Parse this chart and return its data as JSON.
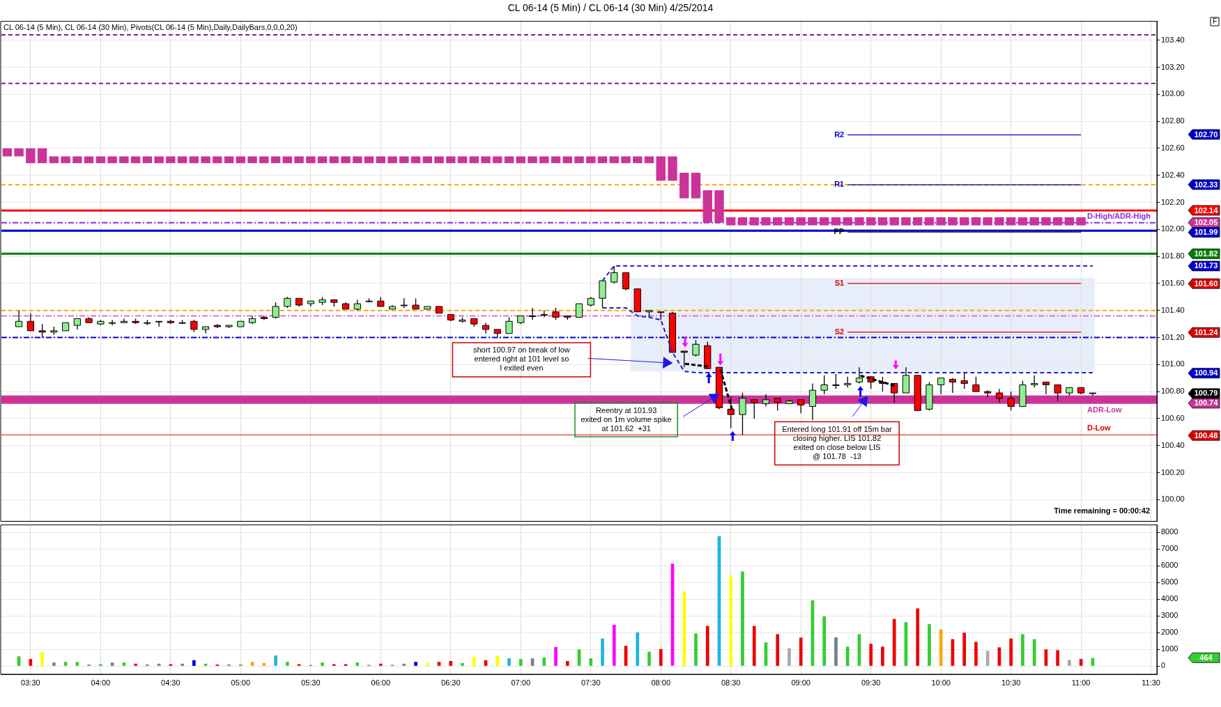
{
  "chart_data": [
    {
      "type": "candlestick",
      "title": "CL 06-14 (5 Min) / CL 06-14 (30 Min)  4/25/2014",
      "categories": [
        null,
        null,
        null,
        null,
        null,
        null,
        null,
        null,
        null,
        null,
        null,
        null,
        null,
        null,
        null,
        null,
        null,
        null,
        null,
        null,
        null,
        null,
        null,
        null,
        null,
        null,
        null,
        null,
        null,
        null,
        null,
        null,
        null,
        null,
        null,
        null,
        null,
        null,
        null,
        null,
        null,
        null,
        null,
        null,
        null,
        null,
        null,
        null,
        null,
        null,
        null,
        null,
        null,
        null,
        null,
        null,
        null,
        null,
        null,
        null,
        null,
        null,
        null,
        null,
        null,
        null,
        null,
        null,
        null,
        null,
        null,
        null,
        null,
        null,
        null,
        null,
        null,
        null,
        null,
        null,
        null,
        null,
        null,
        null,
        null,
        null,
        null,
        null,
        null,
        null,
        null,
        null,
        null,
        null,
        null,
        null,
        null,
        null,
        null
      ],
      "ohlc": [
        null,
        [
          101.28,
          101.4,
          101.28,
          101.32
        ],
        [
          101.32,
          101.38,
          101.25,
          101.25
        ],
        [
          101.25,
          101.3,
          101.2,
          101.24
        ],
        [
          101.24,
          101.28,
          101.22,
          101.25
        ],
        [
          101.25,
          101.31,
          101.25,
          101.31
        ],
        [
          101.29,
          101.34,
          101.26,
          101.34
        ],
        [
          101.34,
          101.35,
          101.31,
          101.31
        ],
        [
          101.3,
          101.33,
          101.29,
          101.32
        ],
        [
          101.31,
          101.33,
          101.29,
          101.31
        ],
        [
          101.31,
          101.34,
          101.31,
          101.32
        ],
        [
          101.32,
          101.34,
          101.3,
          101.31
        ],
        [
          101.31,
          101.33,
          101.29,
          101.31
        ],
        [
          101.32,
          101.32,
          101.28,
          101.32
        ],
        [
          101.32,
          101.33,
          101.3,
          101.31
        ],
        [
          101.31,
          101.33,
          101.3,
          101.31
        ],
        [
          101.32,
          101.33,
          101.24,
          101.26
        ],
        [
          101.26,
          101.28,
          101.23,
          101.28
        ],
        [
          101.29,
          101.3,
          101.27,
          101.28
        ],
        [
          101.28,
          101.29,
          101.27,
          101.29
        ],
        [
          101.28,
          101.32,
          101.28,
          101.32
        ],
        [
          101.31,
          101.36,
          101.3,
          101.34
        ],
        [
          101.35,
          101.36,
          101.33,
          101.34
        ],
        [
          101.35,
          101.46,
          101.34,
          101.43
        ],
        [
          101.43,
          101.5,
          101.42,
          101.49
        ],
        [
          101.49,
          101.49,
          101.43,
          101.44
        ],
        [
          101.45,
          101.47,
          101.43,
          101.47
        ],
        [
          101.46,
          101.5,
          101.44,
          101.48
        ],
        [
          101.48,
          101.48,
          101.43,
          101.46
        ],
        [
          101.45,
          101.46,
          101.41,
          101.41
        ],
        [
          101.41,
          101.48,
          101.4,
          101.45
        ],
        [
          101.47,
          101.49,
          101.46,
          101.47
        ],
        [
          101.47,
          101.5,
          101.43,
          101.43
        ],
        [
          101.41,
          101.44,
          101.41,
          101.43
        ],
        [
          101.44,
          101.49,
          101.42,
          101.44
        ],
        [
          101.44,
          101.49,
          101.41,
          101.41
        ],
        [
          101.41,
          101.43,
          101.41,
          101.43
        ],
        [
          101.43,
          101.43,
          101.38,
          101.38
        ],
        [
          101.37,
          101.37,
          101.32,
          101.33
        ],
        [
          101.32,
          101.35,
          101.31,
          101.33
        ],
        [
          101.34,
          101.34,
          101.28,
          101.3
        ],
        [
          101.29,
          101.31,
          101.23,
          101.26
        ],
        [
          101.26,
          101.26,
          101.2,
          101.23
        ],
        [
          101.23,
          101.35,
          101.23,
          101.32
        ],
        [
          101.31,
          101.36,
          101.3,
          101.36
        ],
        [
          101.36,
          101.42,
          101.33,
          101.36
        ],
        [
          101.37,
          101.4,
          101.35,
          101.37
        ],
        [
          101.39,
          101.42,
          101.33,
          101.35
        ],
        [
          101.36,
          101.36,
          101.33,
          101.35
        ],
        [
          101.35,
          101.45,
          101.35,
          101.45
        ],
        [
          101.44,
          101.5,
          101.43,
          101.49
        ],
        [
          101.49,
          101.62,
          101.42,
          101.62
        ],
        [
          101.61,
          101.73,
          101.6,
          101.68
        ],
        [
          101.68,
          101.68,
          101.55,
          101.56
        ],
        [
          101.56,
          101.56,
          101.39,
          101.39
        ],
        [
          101.39,
          101.4,
          101.35,
          101.4
        ],
        [
          101.39,
          101.39,
          101.33,
          101.39
        ],
        [
          101.38,
          101.39,
          101.09,
          101.09
        ],
        [
          101.1,
          101.1,
          100.98,
          101.09
        ],
        [
          101.07,
          101.18,
          101.06,
          101.15
        ],
        [
          101.14,
          101.17,
          100.97,
          100.97
        ],
        [
          100.98,
          100.98,
          100.67,
          100.68
        ],
        [
          100.67,
          100.76,
          100.53,
          100.63
        ],
        [
          100.63,
          100.79,
          100.48,
          100.75
        ],
        [
          100.74,
          100.74,
          100.6,
          100.72
        ],
        [
          100.71,
          100.78,
          100.69,
          100.74
        ],
        [
          100.75,
          100.75,
          100.66,
          100.72
        ],
        [
          100.71,
          100.74,
          100.71,
          100.73
        ],
        [
          100.74,
          100.74,
          100.64,
          100.7
        ],
        [
          100.69,
          100.86,
          100.59,
          100.81
        ],
        [
          100.81,
          100.92,
          100.78,
          100.85
        ],
        [
          100.85,
          100.93,
          100.82,
          100.85
        ],
        [
          100.85,
          100.91,
          100.83,
          100.86
        ],
        [
          100.87,
          100.98,
          100.86,
          100.9
        ],
        [
          100.91,
          100.91,
          100.82,
          100.87
        ],
        [
          100.87,
          100.91,
          100.8,
          100.86
        ],
        [
          100.86,
          100.86,
          100.72,
          100.79
        ],
        [
          100.79,
          100.98,
          100.79,
          100.92
        ],
        [
          100.92,
          100.92,
          100.66,
          100.66
        ],
        [
          100.67,
          100.87,
          100.66,
          100.85
        ],
        [
          100.85,
          100.9,
          100.78,
          100.9
        ],
        [
          100.89,
          100.9,
          100.79,
          100.87
        ],
        [
          100.88,
          100.94,
          100.82,
          100.86
        ],
        [
          100.85,
          100.91,
          100.8,
          100.8
        ],
        [
          100.8,
          100.81,
          100.76,
          100.79
        ],
        [
          100.79,
          100.82,
          100.72,
          100.75
        ],
        [
          100.75,
          100.8,
          100.66,
          100.69
        ],
        [
          100.69,
          100.88,
          100.69,
          100.85
        ],
        [
          100.85,
          100.92,
          100.83,
          100.86
        ],
        [
          100.87,
          100.87,
          100.78,
          100.85
        ],
        [
          100.85,
          100.85,
          100.73,
          100.79
        ],
        [
          100.79,
          100.83,
          100.77,
          100.83
        ],
        [
          100.83,
          100.83,
          100.78,
          100.79
        ],
        [
          100.79,
          100.79,
          100.77,
          100.79
        ],
        null,
        null,
        null,
        null,
        null
      ],
      "colors": [
        null,
        "#90ee90",
        "#ff0000",
        "#ff0000",
        "#90ee90",
        "#90ee90",
        "#90ee90",
        "#ff0000",
        "#90ee90",
        "#90ee90",
        "#90ee90",
        "#ff0000",
        "#90ee90",
        "#90ee90",
        "#ff0000",
        "#90ee90",
        "#ff0000",
        "#90ee90",
        "#ff0000",
        "#90ee90",
        "#90ee90",
        "#90ee90",
        "#ff0000",
        "#90ee90",
        "#90ee90",
        "#ff0000",
        "#90ee90",
        "#90ee90",
        "#ff0000",
        "#ff0000",
        "#90ee90",
        "#90ee90",
        "#ff0000",
        "#90ee90",
        "#90ee90",
        "#ff0000",
        "#90ee90",
        "#ff0000",
        "#ff0000",
        "#90ee90",
        "#ff0000",
        "#ff0000",
        "#ff0000",
        "#90ee90",
        "#90ee90",
        "#90ee90",
        "#90ee90",
        "#ff0000",
        "#ff0000",
        "#90ee90",
        "#90ee90",
        "#90ee90",
        "#90ee90",
        "#ff0000",
        "#ff0000",
        "#90ee90",
        "#90ee90",
        "#ff0000",
        "#ff0000",
        "#90ee90",
        "#ff0000",
        "#ff0000",
        "#ff0000",
        "#90ee90",
        "#ff0000",
        "#90ee90",
        "#ff0000",
        "#90ee90",
        "#ff0000",
        "#90ee90",
        "#90ee90",
        "#90ee90",
        "#90ee90",
        "#90ee90",
        "#ff0000",
        "#ff0000",
        "#ff0000",
        "#90ee90",
        "#ff0000",
        "#90ee90",
        "#90ee90",
        "#ff0000",
        "#ff0000",
        "#ff0000",
        "#ff0000",
        "#ff0000",
        "#ff0000",
        "#90ee90",
        "#90ee90",
        "#ff0000",
        "#ff0000",
        "#90ee90",
        "#ff0000",
        "#90ee90",
        null,
        null,
        null,
        null,
        null
      ],
      "ylim": [
        99.84,
        103.54
      ],
      "yticks": [
        {
          "value": 100,
          "label": "100.00"
        },
        {
          "value": 100.2,
          "label": "100.20"
        },
        {
          "value": 100.4,
          "label": "100.40"
        },
        {
          "value": 100.6,
          "label": "100.60"
        },
        {
          "value": 100.8,
          "label": "100.80"
        },
        {
          "value": 101,
          "label": "101.00"
        },
        {
          "value": 101.2,
          "label": "101.20"
        },
        {
          "value": 101.4,
          "label": "101.40"
        },
        {
          "value": 101.6,
          "label": "101.60"
        },
        {
          "value": 101.8,
          "label": "101.80"
        },
        {
          "value": 102,
          "label": "102.00"
        },
        {
          "value": 102.2,
          "label": "102.20"
        },
        {
          "value": 102.4,
          "label": "102.40"
        },
        {
          "value": 102.6,
          "label": "102.60"
        },
        {
          "value": 102.8,
          "label": "102.80"
        },
        {
          "value": 103,
          "label": "103.00"
        },
        {
          "value": 103.2,
          "label": "103.20"
        },
        {
          "value": 103.4,
          "label": "103.40"
        }
      ],
      "grid": true,
      "tick_labels": "y",
      "series": [
        {
          "type": "bar",
          "color": "#cc3399",
          "values": [
            0.06,
            0.06,
            0.11,
            0.11,
            0.05,
            0.05,
            0.05,
            0.05,
            0.05,
            0.05,
            0.05,
            0.05,
            0.05,
            0.05,
            0.05,
            0.05,
            0.05,
            0.05,
            0.05,
            0.05,
            0.05,
            0.05,
            0.05,
            0.05,
            0.05,
            0.05,
            0.05,
            0.05,
            0.05,
            0.05,
            0.05,
            0.05,
            0.05,
            0.05,
            0.05,
            0.05,
            0.05,
            0.05,
            0.05,
            0.05,
            0.05,
            0.05,
            0.05,
            0.05,
            0.05,
            0.05,
            0.05,
            0.05,
            0.05,
            0.05,
            0.05,
            0.05,
            0.05,
            0.05,
            0.05,
            0.05,
            0.18,
            0.18,
            0.19,
            0.19,
            0.24,
            0.24,
            0.06,
            0.06,
            0.06,
            0.06,
            0.06,
            0.06,
            0.06,
            0.06,
            0.06,
            0.06,
            0.06,
            0.06,
            0.06,
            0.06,
            0.06,
            0.06,
            0.06,
            0.06,
            0.06,
            0.06,
            0.06,
            0.06,
            0.06,
            0.06,
            0.06,
            0.06,
            0.06,
            0.06,
            0.06,
            0.06,
            0.06,
            null,
            null,
            null,
            null,
            null,
            null
          ],
          "base": [
            102.54,
            102.54,
            102.49,
            102.49,
            102.49,
            102.49,
            102.49,
            102.49,
            102.49,
            102.49,
            102.49,
            102.49,
            102.49,
            102.49,
            102.49,
            102.49,
            102.49,
            102.49,
            102.49,
            102.49,
            102.49,
            102.49,
            102.49,
            102.49,
            102.49,
            102.49,
            102.49,
            102.49,
            102.49,
            102.49,
            102.49,
            102.49,
            102.49,
            102.49,
            102.49,
            102.49,
            102.49,
            102.49,
            102.49,
            102.49,
            102.49,
            102.49,
            102.49,
            102.49,
            102.49,
            102.49,
            102.49,
            102.49,
            102.49,
            102.49,
            102.49,
            102.49,
            102.49,
            102.49,
            102.49,
            102.49,
            102.36,
            102.36,
            102.23,
            102.23,
            102.05,
            102.05,
            102.03,
            102.03,
            102.03,
            102.03,
            102.03,
            102.03,
            102.03,
            102.03,
            102.03,
            102.03,
            102.03,
            102.03,
            102.03,
            102.03,
            102.03,
            102.03,
            102.03,
            102.03,
            102.03,
            102.03,
            102.03,
            102.03,
            102.03,
            102.03,
            102.03,
            102.03,
            102.03,
            102.03,
            102.03,
            102.03,
            102.03,
            null,
            null,
            null,
            null,
            null,
            null
          ]
        },
        {
          "type": "line",
          "color": "#1a1acd",
          "line_style": "dashed",
          "values": [
            null,
            null,
            null,
            null,
            null,
            null,
            null,
            null,
            null,
            null,
            null,
            null,
            null,
            null,
            null,
            null,
            null,
            null,
            null,
            null,
            null,
            null,
            null,
            null,
            null,
            null,
            null,
            null,
            null,
            null,
            null,
            null,
            null,
            null,
            null,
            null,
            null,
            null,
            null,
            null,
            null,
            null,
            null,
            null,
            null,
            null,
            null,
            null,
            null,
            null,
            null,
            101.62,
            101.73,
            101.73,
            101.73,
            101.73,
            101.73,
            101.73,
            101.73,
            101.73,
            101.73,
            101.73,
            101.73,
            101.73,
            101.73,
            101.73,
            101.73,
            101.73,
            101.73,
            101.73,
            101.73,
            101.73,
            101.73,
            101.73,
            101.73,
            101.73,
            101.73,
            101.73,
            101.73,
            101.73,
            101.73,
            101.73,
            101.73,
            101.73,
            101.73,
            101.73,
            101.73,
            101.73,
            101.73,
            101.73,
            101.73,
            101.73,
            101.73,
            101.73,
            null,
            null,
            null,
            null,
            null
          ]
        },
        {
          "type": "line",
          "color": "#1a1acd",
          "line_style": "dashed",
          "values": [
            null,
            null,
            null,
            null,
            null,
            null,
            null,
            null,
            null,
            null,
            null,
            null,
            null,
            null,
            null,
            null,
            null,
            null,
            null,
            null,
            null,
            null,
            null,
            null,
            null,
            null,
            null,
            null,
            null,
            null,
            null,
            null,
            null,
            null,
            null,
            null,
            null,
            null,
            null,
            null,
            null,
            null,
            null,
            null,
            null,
            null,
            null,
            null,
            null,
            null,
            null,
            101.42,
            101.42,
            101.42,
            101.36,
            101.35,
            101.33,
            101.09,
            100.95,
            100.94,
            100.94,
            100.94,
            100.94,
            100.94,
            100.94,
            100.94,
            100.94,
            100.94,
            100.94,
            100.94,
            100.94,
            100.94,
            100.94,
            100.94,
            100.94,
            100.94,
            100.94,
            100.94,
            100.94,
            100.94,
            100.94,
            100.94,
            100.94,
            100.94,
            100.94,
            100.94,
            100.94,
            100.94,
            100.94,
            100.94,
            100.94,
            100.94,
            100.94,
            100.94,
            null,
            null,
            null,
            null,
            null
          ]
        },
        {
          "type": "line",
          "name": "R2",
          "color": "#0000cd",
          "values": [
            null,
            null,
            null,
            null,
            null,
            null,
            null,
            null,
            null,
            null,
            null,
            null,
            null,
            null,
            null,
            null,
            null,
            null,
            null,
            null,
            null,
            null,
            null,
            null,
            null,
            null,
            null,
            null,
            null,
            null,
            null,
            null,
            null,
            null,
            null,
            null,
            null,
            null,
            null,
            null,
            null,
            null,
            null,
            null,
            null,
            null,
            null,
            null,
            null,
            null,
            null,
            null,
            null,
            null,
            null,
            null,
            null,
            null,
            null,
            null,
            null,
            null,
            null,
            null,
            null,
            null,
            null,
            null,
            null,
            null,
            null,
            null,
            102.7,
            102.7,
            102.7,
            102.7,
            102.7,
            102.7,
            102.7,
            102.7,
            102.7,
            102.7,
            102.7,
            102.7,
            102.7,
            102.7,
            102.7,
            102.7,
            102.7,
            102.7,
            102.7,
            102.7,
            102.7,
            null,
            null,
            null,
            null,
            null,
            null
          ]
        },
        {
          "type": "line",
          "name": "R1",
          "color": "#0000cd",
          "values": [
            null,
            null,
            null,
            null,
            null,
            null,
            null,
            null,
            null,
            null,
            null,
            null,
            null,
            null,
            null,
            null,
            null,
            null,
            null,
            null,
            null,
            null,
            null,
            null,
            null,
            null,
            null,
            null,
            null,
            null,
            null,
            null,
            null,
            null,
            null,
            null,
            null,
            null,
            null,
            null,
            null,
            null,
            null,
            null,
            null,
            null,
            null,
            null,
            null,
            null,
            null,
            null,
            null,
            null,
            null,
            null,
            null,
            null,
            null,
            null,
            null,
            null,
            null,
            null,
            null,
            null,
            null,
            null,
            null,
            null,
            null,
            null,
            102.33,
            102.33,
            102.33,
            102.33,
            102.33,
            102.33,
            102.33,
            102.33,
            102.33,
            102.33,
            102.33,
            102.33,
            102.33,
            102.33,
            102.33,
            102.33,
            102.33,
            102.33,
            102.33,
            102.33,
            102.33,
            null,
            null,
            null,
            null,
            null,
            null
          ]
        },
        {
          "type": "line",
          "name": "PP",
          "color": "#000000",
          "values": [
            null,
            null,
            null,
            null,
            null,
            null,
            null,
            null,
            null,
            null,
            null,
            null,
            null,
            null,
            null,
            null,
            null,
            null,
            null,
            null,
            null,
            null,
            null,
            null,
            null,
            null,
            null,
            null,
            null,
            null,
            null,
            null,
            null,
            null,
            null,
            null,
            null,
            null,
            null,
            null,
            null,
            null,
            null,
            null,
            null,
            null,
            null,
            null,
            null,
            null,
            null,
            null,
            null,
            null,
            null,
            null,
            null,
            null,
            null,
            null,
            null,
            null,
            null,
            null,
            null,
            null,
            null,
            null,
            null,
            null,
            null,
            null,
            101.98,
            101.98,
            101.98,
            101.98,
            101.98,
            101.98,
            101.98,
            101.98,
            101.98,
            101.98,
            101.98,
            101.98,
            101.98,
            101.98,
            101.98,
            101.98,
            101.98,
            101.98,
            101.98,
            101.98,
            101.98,
            null,
            null,
            null,
            null,
            null,
            null
          ]
        },
        {
          "type": "line",
          "name": "S1",
          "color": "#dd0000",
          "values": [
            null,
            null,
            null,
            null,
            null,
            null,
            null,
            null,
            null,
            null,
            null,
            null,
            null,
            null,
            null,
            null,
            null,
            null,
            null,
            null,
            null,
            null,
            null,
            null,
            null,
            null,
            null,
            null,
            null,
            null,
            null,
            null,
            null,
            null,
            null,
            null,
            null,
            null,
            null,
            null,
            null,
            null,
            null,
            null,
            null,
            null,
            null,
            null,
            null,
            null,
            null,
            null,
            null,
            null,
            null,
            null,
            null,
            null,
            null,
            null,
            null,
            null,
            null,
            null,
            null,
            null,
            null,
            null,
            null,
            null,
            null,
            null,
            101.6,
            101.6,
            101.6,
            101.6,
            101.6,
            101.6,
            101.6,
            101.6,
            101.6,
            101.6,
            101.6,
            101.6,
            101.6,
            101.6,
            101.6,
            101.6,
            101.6,
            101.6,
            101.6,
            101.6,
            101.6,
            null,
            null,
            null,
            null,
            null,
            null
          ]
        },
        {
          "type": "line",
          "name": "S2",
          "color": "#dd0000",
          "values": [
            null,
            null,
            null,
            null,
            null,
            null,
            null,
            null,
            null,
            null,
            null,
            null,
            null,
            null,
            null,
            null,
            null,
            null,
            null,
            null,
            null,
            null,
            null,
            null,
            null,
            null,
            null,
            null,
            null,
            null,
            null,
            null,
            null,
            null,
            null,
            null,
            null,
            null,
            null,
            null,
            null,
            null,
            null,
            null,
            null,
            null,
            null,
            null,
            null,
            null,
            null,
            null,
            null,
            null,
            null,
            null,
            null,
            null,
            null,
            null,
            null,
            null,
            null,
            null,
            null,
            null,
            null,
            null,
            null,
            null,
            null,
            null,
            101.24,
            101.24,
            101.24,
            101.24,
            101.24,
            101.24,
            101.24,
            101.24,
            101.24,
            101.24,
            101.24,
            101.24,
            101.24,
            101.24,
            101.24,
            101.24,
            101.24,
            101.24,
            101.24,
            101.24,
            101.24,
            null,
            null,
            null,
            null,
            null,
            null
          ]
        }
      ],
      "ref_lines": [
        {
          "axis": "y",
          "value": 103.44,
          "color": "#8b1a8b",
          "line_style": "dashed"
        },
        {
          "axis": "y",
          "value": 103.08,
          "color": "#8b1a8b",
          "line_style": "dashed"
        },
        {
          "axis": "y",
          "value": 102.33,
          "color": "#ffa500",
          "line_style": "dashed"
        },
        {
          "axis": "y",
          "value": 102.14,
          "color": "#ff0000",
          "line_style": "solid"
        },
        {
          "axis": "y",
          "value": 102.05,
          "color": "#8a2be2",
          "line_style": "dotted",
          "label": "D-High/ADR-High"
        },
        {
          "axis": "y",
          "value": 101.99,
          "color": "#0000cd",
          "line_style": "solid"
        },
        {
          "axis": "y",
          "value": 101.82,
          "color": "#008000",
          "line_style": "solid"
        },
        {
          "axis": "y",
          "value": 101.4,
          "color": "#ffa500",
          "line_style": "dashed"
        },
        {
          "axis": "y",
          "value": 101.36,
          "color": "#da70d6",
          "line_style": "dotted"
        },
        {
          "axis": "y",
          "value": 101.2,
          "color": "#0000cd",
          "line_style": "dotted"
        },
        {
          "axis": "y",
          "value": 100.48,
          "color": "#dd0000",
          "line_style": "solid",
          "label": "D-Low"
        },
        {
          "axis": "y",
          "value": 100.74,
          "color": "#cc3399",
          "line_style": "solid",
          "label": "ADR-Low"
        }
      ],
      "annotations": [
        "CL 06-14 (5 Min), CL 06-14 (30 Min), Pivots(CL 06-14 (5 Min),Daily,DailyBars,0,0,0,20)",
        "short 100.97 on break of low\nentered right at 101 level so\nI exited even",
        "Reentry at 101.93\nexited on 1m volume spike\nat 101.62  +31",
        "Entered long 101.91 off 15m bar\nclosing higher. LIS 101.82\nexited on close below LIS\n@ 101.78  -13",
        "Time remaining = 00:00:42",
        "F",
        "102.70",
        "102.33",
        "102.14",
        "102.05",
        "101.99",
        "101.82",
        "101.73",
        "101.60",
        "101.24",
        "100.94",
        "100.79",
        "100.74",
        "100.48"
      ]
    },
    {
      "type": "bar",
      "categories": [
        null,
        null,
        "03:30",
        null,
        null,
        null,
        null,
        null,
        "04:00",
        null,
        null,
        null,
        null,
        null,
        "04:30",
        null,
        null,
        null,
        null,
        null,
        "05:00",
        null,
        null,
        null,
        null,
        null,
        "05:30",
        null,
        null,
        null,
        null,
        null,
        "06:00",
        null,
        null,
        null,
        null,
        null,
        "06:30",
        null,
        null,
        null,
        null,
        null,
        "07:00",
        null,
        null,
        null,
        null,
        null,
        "07:30",
        null,
        null,
        null,
        null,
        null,
        "08:00",
        null,
        null,
        null,
        null,
        null,
        "08:30",
        null,
        null,
        null,
        null,
        null,
        "09:00",
        null,
        null,
        null,
        null,
        null,
        "09:30",
        null,
        null,
        null,
        null,
        null,
        "10:00",
        null,
        null,
        null,
        null,
        null,
        "10:30",
        null,
        null,
        null,
        null,
        null,
        "11:00",
        null,
        null,
        null,
        null,
        null,
        "11:30"
      ],
      "values": [
        null,
        560,
        400,
        820,
        190,
        230,
        230,
        70,
        90,
        190,
        190,
        120,
        70,
        120,
        90,
        120,
        330,
        120,
        70,
        70,
        70,
        230,
        160,
        610,
        230,
        90,
        50,
        190,
        90,
        90,
        190,
        50,
        120,
        50,
        120,
        230,
        160,
        230,
        280,
        160,
        540,
        330,
        610,
        440,
        400,
        440,
        490,
        1120,
        280,
        980,
        440,
        1630,
        2450,
        1190,
        2000,
        840,
        1000,
        6110,
        4450,
        1930,
        2380,
        7760,
        5410,
        5640,
        2380,
        1400,
        1890,
        1050,
        1680,
        3920,
        2960,
        1700,
        1140,
        1890,
        1310,
        1140,
        2800,
        2610,
        3430,
        2490,
        2170,
        1590,
        1980,
        1420,
        890,
        1100,
        1630,
        1890,
        1590,
        980,
        930,
        350,
        400,
        464,
        null,
        null,
        null,
        null,
        null
      ],
      "colors": [
        null,
        "#32cd32",
        "#ee0000",
        "#ffff00",
        "#808080",
        "#32cd32",
        "#32cd32",
        "#808080",
        "#32cd32",
        "#808080",
        "#32cd32",
        "#ee0000",
        "#808080",
        "#808080",
        "#ee0000",
        "#808080",
        "#0000cd",
        "#32cd32",
        "#ee0000",
        "#808080",
        "#32cd32",
        "#ffa500",
        "#ffa500",
        "#1eb4e6",
        "#32cd32",
        "#ee0000",
        "#808080",
        "#32cd32",
        "#ee0000",
        "#ee0000",
        "#32cd32",
        "#808080",
        "#ee0000",
        "#808080",
        "#808080",
        "#0000cd",
        "#ffff00",
        "#ee0000",
        "#ee0000",
        "#32cd32",
        "#ffff00",
        "#ee0000",
        "#ffff00",
        "#1eb4e6",
        "#32cd32",
        "#808080",
        "#32cd32",
        "#ff00ff",
        "#ee0000",
        "#32cd32",
        "#32cd32",
        "#1eb4e6",
        "#ff00ff",
        "#ee0000",
        "#1eb4e6",
        "#32cd32",
        "#ee0000",
        "#ff00ff",
        "#ffff00",
        "#32cd32",
        "#ee0000",
        "#1eb4e6",
        "#ffff00",
        "#32cd32",
        "#ee0000",
        "#32cd32",
        "#ee0000",
        "#a9a9a9",
        "#ee0000",
        "#32cd32",
        "#32cd32",
        "#708090",
        "#32cd32",
        "#32cd32",
        "#ee0000",
        "#ee0000",
        "#ee0000",
        "#32cd32",
        "#ee0000",
        "#32cd32",
        "#ffa500",
        "#ee0000",
        "#ee0000",
        "#ee0000",
        "#a9a9a9",
        "#ee0000",
        "#ee0000",
        "#32cd32",
        "#32cd32",
        "#ee0000",
        "#ee0000",
        "#a9a9a9",
        "#ee0000",
        "#32cd32",
        null,
        null,
        null,
        null,
        null
      ],
      "ylim": [
        -500,
        8450
      ],
      "yticks": [
        0,
        1000,
        2000,
        3000,
        4000,
        5000,
        6000,
        7000,
        8000
      ],
      "grid": true,
      "annotations": [
        "464"
      ]
    }
  ]
}
